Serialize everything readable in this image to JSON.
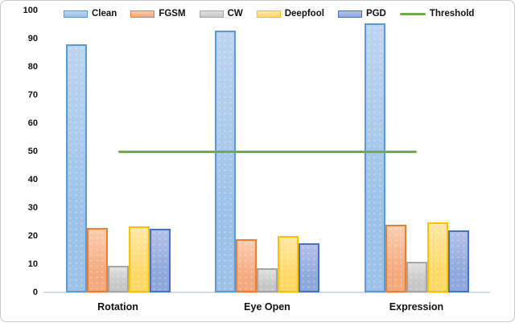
{
  "chart_data": {
    "type": "bar",
    "title": "",
    "categories": [
      "Rotation",
      "Eye Open",
      "Expression"
    ],
    "series": [
      {
        "name": "Clean",
        "values": [
          88,
          93,
          95.5
        ],
        "fill": "#9CC2E8",
        "fill_light": "#BDD4F0",
        "border": "#5B9BD5"
      },
      {
        "name": "FGSM",
        "values": [
          23,
          19,
          24
        ],
        "fill": "#F5A97E",
        "fill_light": "#FACDB0",
        "border": "#ED7D31"
      },
      {
        "name": "CW",
        "values": [
          9.5,
          8.5,
          11
        ],
        "fill": "#C6C6C6",
        "fill_light": "#E0E0E0",
        "border": "#A6A6A6"
      },
      {
        "name": "Deepfool",
        "values": [
          23.5,
          20,
          25
        ],
        "fill": "#FFD966",
        "fill_light": "#FFE7A6",
        "border": "#FFC000"
      },
      {
        "name": "PGD",
        "values": [
          22.5,
          17.5,
          22
        ],
        "fill": "#8FA8DB",
        "fill_light": "#B3C0E8",
        "border": "#4472C4"
      }
    ],
    "threshold": {
      "name": "Threshold",
      "value": 50,
      "color": "#70AD47"
    },
    "y_axis": {
      "min": 0,
      "max": 100,
      "step": 10,
      "tick_labels": [
        "0",
        "10",
        "20",
        "30",
        "40",
        "50",
        "60",
        "70",
        "80",
        "90",
        "100"
      ]
    },
    "x_axis": {
      "labels": [
        "Rotation",
        "Eye Open",
        "Expression"
      ]
    },
    "legend_position": "top",
    "grid": false,
    "axis_line_color": "#D6DCE5"
  }
}
